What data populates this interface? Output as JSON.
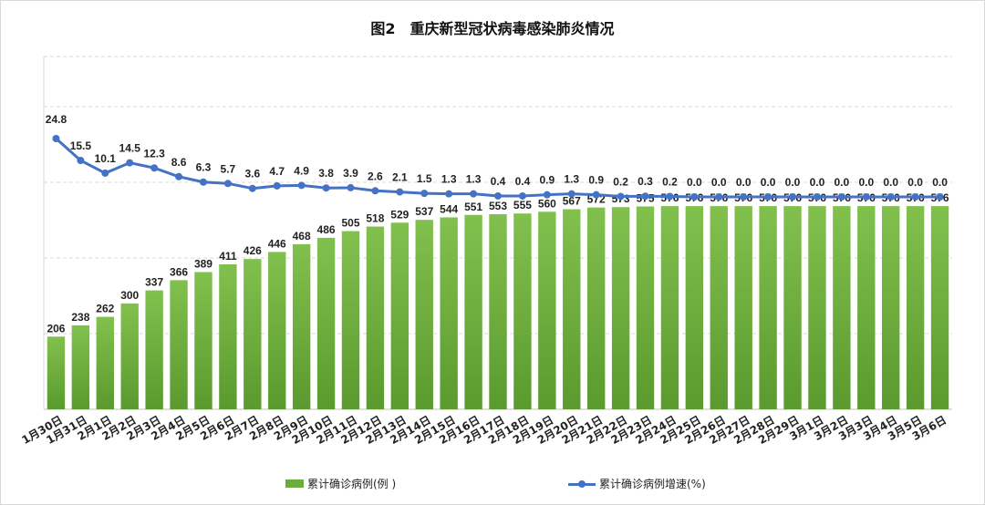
{
  "title": "图2　重庆新型冠状病毒感染肺炎情况",
  "legend": {
    "bar_label": "累计确诊病例(例 )",
    "line_label": "累计确诊病例增速(%)"
  },
  "colors": {
    "bar_top": "#82c04e",
    "bar_bottom": "#5a9a2e",
    "line": "#4472c4",
    "grid": "#d9d9d9"
  },
  "chart_data": {
    "type": "bar+line",
    "categories": [
      "1月30日",
      "1月31日",
      "2月1日",
      "2月2日",
      "2月3日",
      "2月4日",
      "2月5日",
      "2月6日",
      "2月7日",
      "2月8日",
      "2月9日",
      "2月10日",
      "2月11日",
      "2月12日",
      "2月13日",
      "2月14日",
      "2月15日",
      "2月16日",
      "2月17日",
      "2月18日",
      "2月19日",
      "2月20日",
      "2月21日",
      "2月22日",
      "2月23日",
      "2月24日",
      "2月25日",
      "2月26日",
      "2月27日",
      "2月28日",
      "2月29日",
      "3月1日",
      "3月2日",
      "3月3日",
      "3月4日",
      "3月5日",
      "3月6日"
    ],
    "series": [
      {
        "name": "累计确诊病例(例 )",
        "type": "bar",
        "values": [
          206,
          238,
          262,
          300,
          337,
          366,
          389,
          411,
          426,
          446,
          468,
          486,
          505,
          518,
          529,
          537,
          544,
          551,
          553,
          555,
          560,
          567,
          572,
          573,
          575,
          576,
          576,
          576,
          576,
          576,
          576,
          576,
          576,
          576,
          576,
          576,
          576
        ],
        "labels": [
          "206",
          "238",
          "262",
          "300",
          "337",
          "366",
          "389",
          "411",
          "426",
          "446",
          "468",
          "486",
          "505",
          "518",
          "529",
          "537",
          "544",
          "551",
          "553",
          "555",
          "560",
          "567",
          "572",
          "573",
          "575",
          "576",
          "576",
          "576",
          "576",
          "576",
          "576",
          "576",
          "576",
          "576",
          "576",
          "576",
          "576"
        ]
      },
      {
        "name": "累计确诊病例增速(%)",
        "type": "line",
        "values": [
          24.8,
          15.5,
          10.1,
          14.5,
          12.3,
          8.6,
          6.3,
          5.7,
          3.6,
          4.7,
          4.9,
          3.8,
          3.9,
          2.6,
          2.1,
          1.5,
          1.3,
          1.3,
          0.4,
          0.4,
          0.9,
          1.3,
          0.9,
          0.2,
          0.3,
          0.2,
          0.0,
          0.0,
          0.0,
          0.0,
          0.0,
          0.0,
          0.0,
          0.0,
          0.0,
          0.0,
          0.0
        ],
        "labels": [
          "24.8",
          "15.5",
          "10.1",
          "14.5",
          "12.3",
          "8.6",
          "6.3",
          "5.7",
          "3.6",
          "4.7",
          "4.9",
          "3.8",
          "3.9",
          "2.6",
          "2.1",
          "1.5",
          "1.3",
          "1.3",
          "0.4",
          "0.4",
          "0.9",
          "1.3",
          "0.9",
          "0.2",
          "0.3",
          "0.2",
          "0.0",
          "0.0",
          "0.0",
          "0.0",
          "0.0",
          "0.0",
          "0.0",
          "0.0",
          "0.0",
          "0.0",
          "0.0"
        ]
      }
    ],
    "grid": true,
    "legend_position": "bottom"
  }
}
